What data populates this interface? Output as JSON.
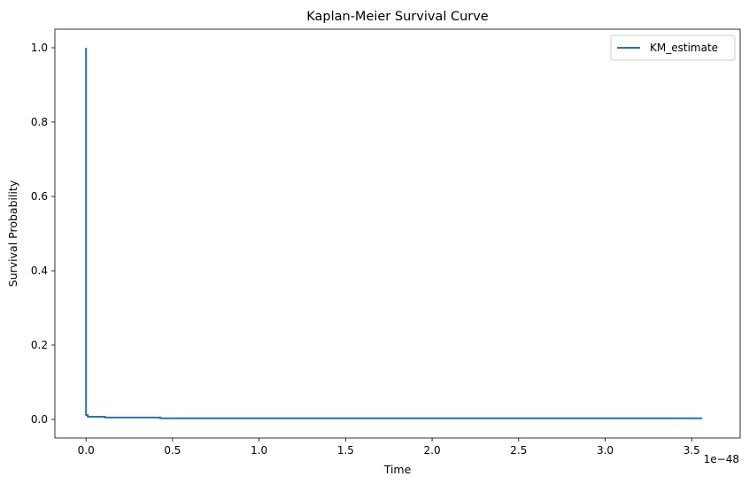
{
  "chart_data": {
    "type": "line",
    "title": "Kaplan-Meier Survival Curve",
    "xlabel": "Time",
    "ylabel": "Survival Probability",
    "x_offset_label": "1e−48",
    "xlim": [
      -0.18,
      3.78
    ],
    "ylim": [
      -0.05,
      1.05
    ],
    "x_ticks": [
      0.0,
      0.5,
      1.0,
      1.5,
      2.0,
      2.5,
      3.0,
      3.5
    ],
    "x_tick_labels": [
      "0.0",
      "0.5",
      "1.0",
      "1.5",
      "2.0",
      "2.5",
      "3.0",
      "3.5"
    ],
    "y_ticks": [
      0.0,
      0.2,
      0.4,
      0.6,
      0.8,
      1.0
    ],
    "y_tick_labels": [
      "0.0",
      "0.2",
      "0.4",
      "0.6",
      "0.8",
      "1.0"
    ],
    "grid": false,
    "legend_position": "top-right",
    "series": [
      {
        "name": "KM_estimate",
        "color": "#1f77b4",
        "step": true,
        "x": [
          0.0,
          0.0,
          0.01,
          0.11,
          0.43,
          3.56
        ],
        "y": [
          1.0,
          0.012,
          0.007,
          0.005,
          0.003,
          0.003
        ]
      }
    ]
  }
}
